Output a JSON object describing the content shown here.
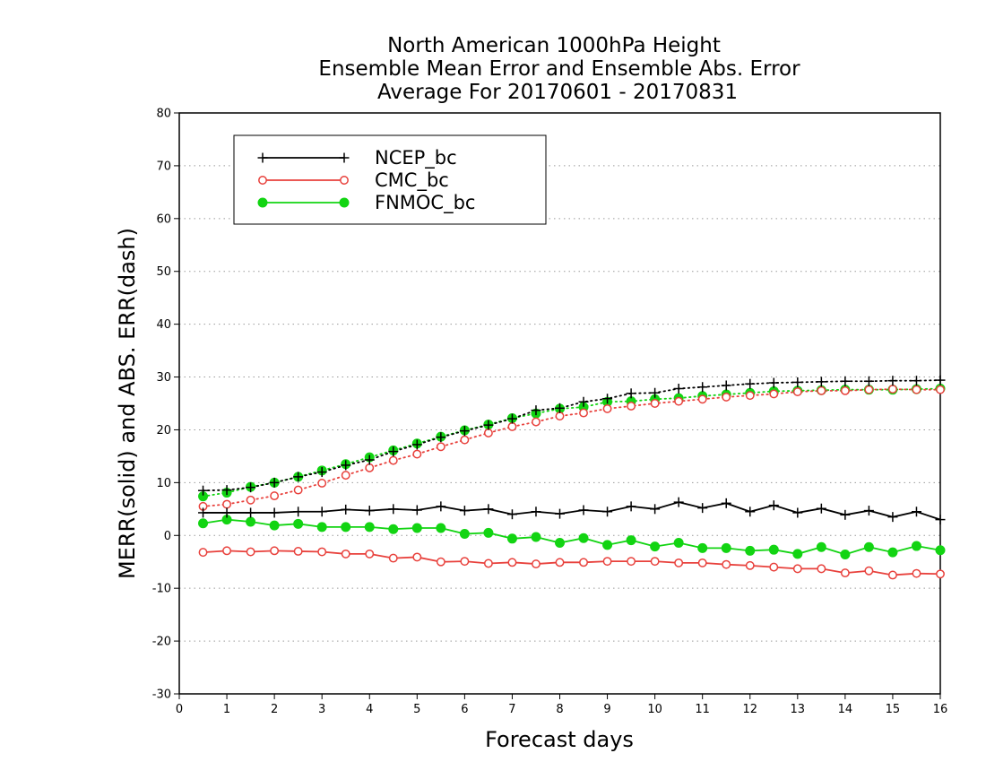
{
  "chart_data": {
    "type": "line",
    "title_lines": [
      "North American 1000hPa Height",
      "Ensemble Mean Error and Ensemble Abs. Error",
      "Average For 20170601 - 20170831"
    ],
    "xlabel": "Forecast days",
    "ylabel": "MERR(solid) and ABS. ERR(dash)",
    "xlim": [
      0,
      16
    ],
    "ylim": [
      -30,
      80
    ],
    "xticks": [
      "0",
      "1",
      "2",
      "3",
      "4",
      "5",
      "6",
      "7",
      "8",
      "9",
      "10",
      "11",
      "12",
      "13",
      "14",
      "15",
      "16"
    ],
    "yticks": [
      "-30",
      "-20",
      "-10",
      "0",
      "10",
      "20",
      "30",
      "40",
      "50",
      "60",
      "70",
      "80"
    ],
    "grid": "horizontal dotted",
    "legend_position": "top-left",
    "colors": {
      "NCEP_bc": "#000000",
      "CMC_bc": "#e8413c",
      "FNMOC_bc": "#12d412"
    },
    "x": [
      0.5,
      1,
      1.5,
      2,
      2.5,
      3,
      3.5,
      4,
      4.5,
      5,
      5.5,
      6,
      6.5,
      7,
      7.5,
      8,
      8.5,
      9,
      9.5,
      10,
      10.5,
      11,
      11.5,
      12,
      12.5,
      13,
      13.5,
      14,
      14.5,
      15,
      15.5,
      16
    ],
    "series": [
      {
        "name": "NCEP_bc",
        "marker": "plus",
        "mean_error": [
          4.3,
          4.3,
          4.3,
          4.3,
          4.5,
          4.5,
          4.9,
          4.7,
          5.0,
          4.8,
          5.5,
          4.7,
          5.0,
          4.0,
          4.5,
          4.1,
          4.8,
          4.5,
          5.5,
          5.0,
          6.3,
          5.2,
          6.1,
          4.5,
          5.7,
          4.3,
          5.1,
          3.9,
          4.7,
          3.5,
          4.5,
          3.0
        ],
        "abs_error": [
          8.5,
          8.6,
          9.1,
          10.0,
          11.1,
          12.0,
          13.3,
          14.3,
          15.9,
          17.2,
          18.6,
          19.8,
          20.9,
          22.1,
          23.7,
          24.1,
          25.3,
          25.9,
          26.9,
          27.0,
          27.8,
          28.1,
          28.4,
          28.7,
          28.9,
          29.0,
          29.1,
          29.2,
          29.2,
          29.3,
          29.3,
          29.4
        ]
      },
      {
        "name": "CMC_bc",
        "marker": "open-circle",
        "mean_error": [
          -3.2,
          -2.9,
          -3.1,
          -2.9,
          -3.0,
          -3.1,
          -3.5,
          -3.5,
          -4.3,
          -4.1,
          -5.0,
          -4.9,
          -5.3,
          -5.1,
          -5.4,
          -5.1,
          -5.1,
          -4.9,
          -4.9,
          -4.9,
          -5.2,
          -5.2,
          -5.5,
          -5.7,
          -6.0,
          -6.3,
          -6.3,
          -7.1,
          -6.7,
          -7.5,
          -7.2,
          -7.3
        ],
        "abs_error": [
          5.5,
          5.9,
          6.7,
          7.5,
          8.6,
          9.9,
          11.4,
          12.8,
          14.2,
          15.4,
          16.8,
          18.1,
          19.4,
          20.6,
          21.5,
          22.6,
          23.2,
          24.0,
          24.5,
          25.0,
          25.4,
          25.8,
          26.2,
          26.5,
          26.8,
          27.2,
          27.4,
          27.4,
          27.6,
          27.7,
          27.6,
          27.6
        ]
      },
      {
        "name": "FNMOC_bc",
        "marker": "filled-circle",
        "mean_error": [
          2.3,
          3.0,
          2.6,
          1.9,
          2.2,
          1.6,
          1.6,
          1.6,
          1.2,
          1.4,
          1.4,
          0.3,
          0.5,
          -0.6,
          -0.3,
          -1.4,
          -0.5,
          -1.8,
          -0.9,
          -2.1,
          -1.4,
          -2.4,
          -2.4,
          -2.9,
          -2.7,
          -3.5,
          -2.2,
          -3.6,
          -2.2,
          -3.2,
          -2.0,
          -2.8
        ],
        "abs_error": [
          7.4,
          8.1,
          9.2,
          10.0,
          11.1,
          12.3,
          13.5,
          14.8,
          16.1,
          17.4,
          18.7,
          19.9,
          21.0,
          22.2,
          23.1,
          24.0,
          24.3,
          25.3,
          25.4,
          25.8,
          26.0,
          26.4,
          26.7,
          27.0,
          27.3,
          27.4,
          27.5,
          27.6,
          27.6,
          27.6,
          27.7,
          27.8
        ]
      }
    ]
  }
}
